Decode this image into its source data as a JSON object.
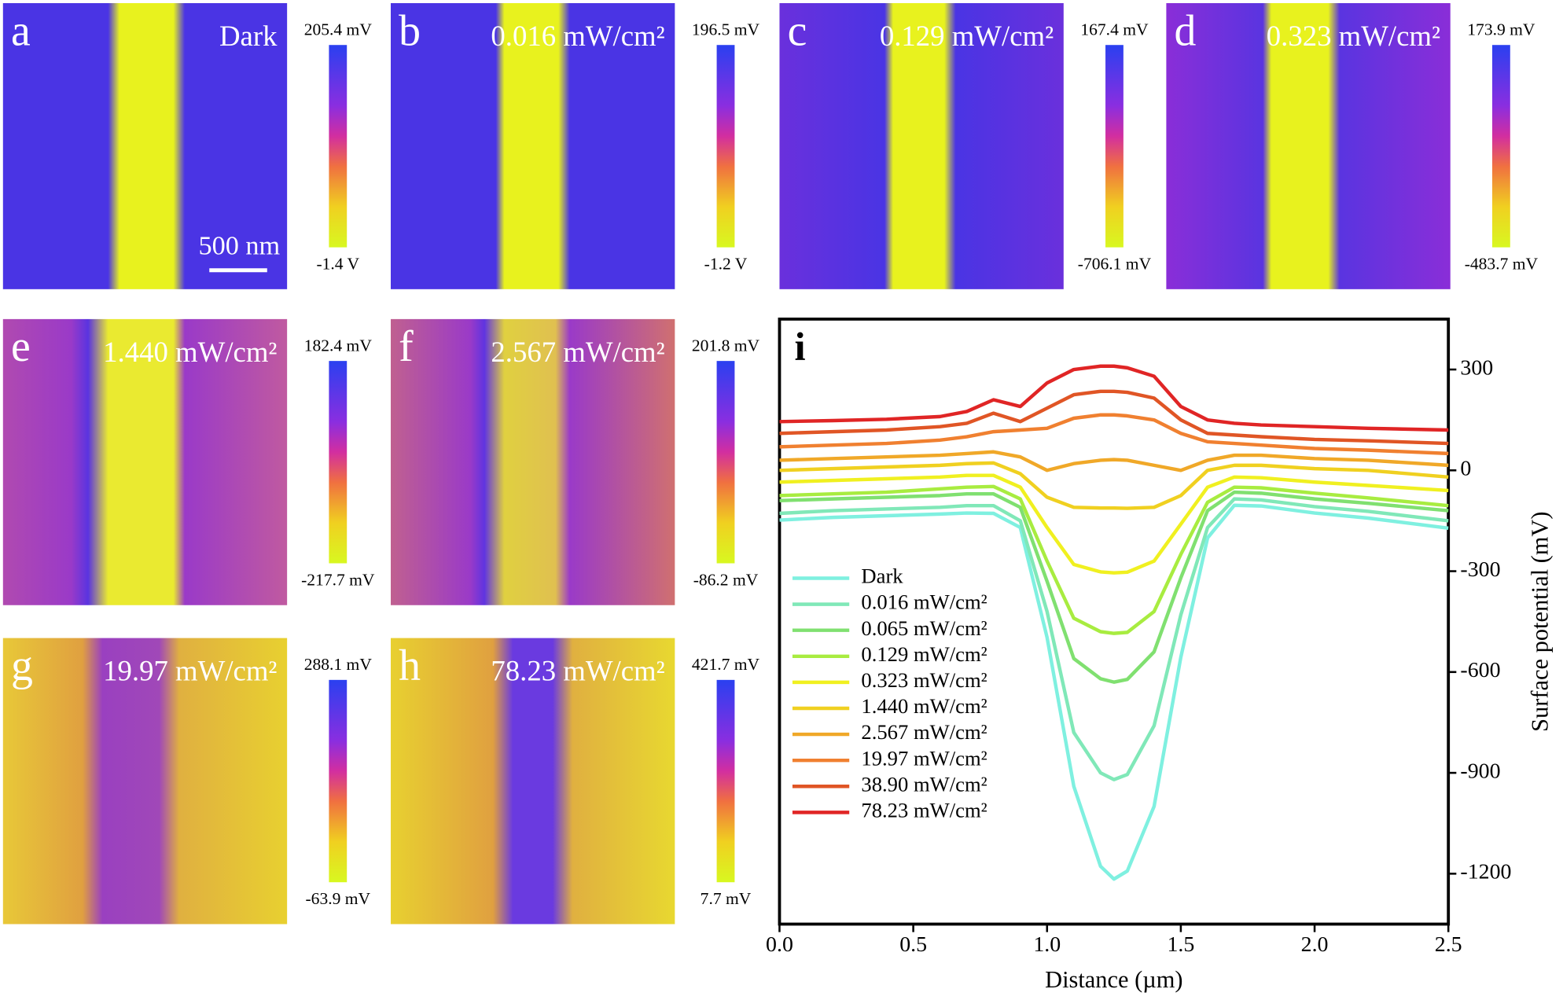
{
  "panels": [
    {
      "label": "a",
      "title": "Dark",
      "colorbar_max": "205.4 mV",
      "colorbar_min": "-1.4 V"
    },
    {
      "label": "b",
      "title": "0.016 mW/cm²",
      "colorbar_max": "196.5 mV",
      "colorbar_min": "-1.2 V"
    },
    {
      "label": "c",
      "title": "0.129 mW/cm²",
      "colorbar_max": "167.4 mV",
      "colorbar_min": "-706.1 mV"
    },
    {
      "label": "d",
      "title": "0.323 mW/cm²",
      "colorbar_max": "173.9 mV",
      "colorbar_min": "-483.7 mV"
    },
    {
      "label": "e",
      "title": "1.440 mW/cm²",
      "colorbar_max": "182.4 mV",
      "colorbar_min": "-217.7 mV"
    },
    {
      "label": "f",
      "title": "2.567 mW/cm²",
      "colorbar_max": "201.8 mV",
      "colorbar_min": "-86.2 mV"
    },
    {
      "label": "g",
      "title": "19.97 mW/cm²",
      "colorbar_max": "288.1 mV",
      "colorbar_min": "-63.9 mV"
    },
    {
      "label": "h",
      "title": "78.23 mW/cm²",
      "colorbar_max": "421.7 mV",
      "colorbar_min": "7.7 mV"
    }
  ],
  "scale_bar": "500 nm",
  "chart_data": {
    "type": "line",
    "panel_label": "i",
    "xlabel": "Distance (µm)",
    "ylabel": "Surface potential (mV)",
    "x": [
      0,
      0.2,
      0.4,
      0.6,
      0.7,
      0.8,
      0.9,
      1.0,
      1.1,
      1.2,
      1.25,
      1.3,
      1.4,
      1.5,
      1.6,
      1.7,
      1.8,
      2.0,
      2.2,
      2.5
    ],
    "xlim": [
      0,
      2.5
    ],
    "ylim": [
      -1350,
      450
    ],
    "xticks": [
      {
        "value": 0,
        "label": "0.0"
      },
      0.5,
      {
        "value": 1,
        "label": "1.0"
      },
      1.5,
      {
        "value": 2,
        "label": "2.0"
      },
      2.5
    ],
    "yticks": [
      300,
      0,
      -300,
      -600,
      -900,
      -1200
    ],
    "series": [
      {
        "name": "Dark",
        "color": "#7ff0e0",
        "values": [
          -148,
          -140,
          -135,
          -130,
          -127,
          -128,
          -170,
          -497,
          -940,
          -1178,
          -1216,
          -1192,
          -1000,
          -556,
          -201,
          -104,
          -106,
          -127,
          -142,
          -172
        ]
      },
      {
        "name": "0.016 mW/cm²",
        "color": "#80e8b8",
        "values": [
          -128,
          -120,
          -115,
          -110,
          -105,
          -105,
          -150,
          -420,
          -780,
          -900,
          -920,
          -905,
          -760,
          -430,
          -170,
          -85,
          -88,
          -108,
          -122,
          -150
        ]
      },
      {
        "name": "0.065 mW/cm²",
        "color": "#80e070",
        "values": [
          -90,
          -85,
          -80,
          -75,
          -70,
          -70,
          -110,
          -330,
          -560,
          -620,
          -630,
          -622,
          -540,
          -320,
          -120,
          -65,
          -68,
          -85,
          -98,
          -120
        ]
      },
      {
        "name": "0.129 mW/cm²",
        "color": "#a8ec40",
        "values": [
          -75,
          -70,
          -65,
          -55,
          -50,
          -48,
          -85,
          -270,
          -440,
          -480,
          -485,
          -482,
          -420,
          -250,
          -95,
          -50,
          -52,
          -68,
          -82,
          -105
        ]
      },
      {
        "name": "0.323 mW/cm²",
        "color": "#f0f020",
        "values": [
          -35,
          -30,
          -25,
          -20,
          -15,
          -15,
          -50,
          -170,
          -280,
          -302,
          -305,
          -303,
          -270,
          -160,
          -50,
          -20,
          -22,
          -35,
          -45,
          -60
        ]
      },
      {
        "name": "1.440 mW/cm²",
        "color": "#f0d020",
        "values": [
          0,
          5,
          10,
          15,
          20,
          22,
          -10,
          -80,
          -110,
          -112,
          -112,
          -113,
          -110,
          -75,
          0,
          15,
          15,
          5,
          0,
          -20
        ]
      },
      {
        "name": "2.567 mW/cm²",
        "color": "#f0a828",
        "values": [
          30,
          35,
          40,
          45,
          50,
          55,
          40,
          0,
          20,
          30,
          32,
          30,
          15,
          0,
          30,
          45,
          45,
          35,
          30,
          15
        ]
      },
      {
        "name": "19.97 mW/cm²",
        "color": "#f08030",
        "values": [
          70,
          75,
          80,
          90,
          100,
          115,
          120,
          125,
          155,
          165,
          165,
          162,
          150,
          110,
          85,
          80,
          75,
          65,
          60,
          50
        ]
      },
      {
        "name": "38.90 mW/cm²",
        "color": "#e05525",
        "values": [
          110,
          115,
          120,
          130,
          140,
          170,
          145,
          185,
          225,
          235,
          235,
          232,
          215,
          150,
          110,
          105,
          100,
          92,
          88,
          80
        ]
      },
      {
        "name": "78.23 mW/cm²",
        "color": "#e02525",
        "values": [
          145,
          148,
          152,
          160,
          175,
          210,
          190,
          260,
          300,
          310,
          310,
          305,
          280,
          190,
          150,
          140,
          135,
          130,
          125,
          120
        ]
      }
    ]
  }
}
